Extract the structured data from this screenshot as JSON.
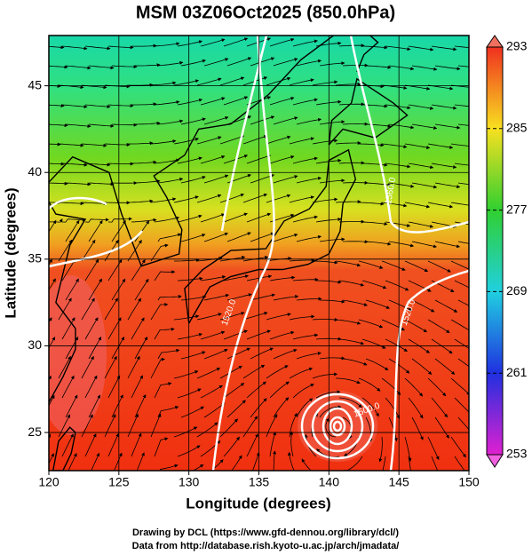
{
  "chart_data": {
    "type": "map",
    "title": "MSM 03Z06Oct2025 (850.0hPa)",
    "x_label": "Longitude (degrees)",
    "y_label": "Latitude  (degrees)",
    "xlim": [
      120,
      150
    ],
    "xticks": [
      120,
      125,
      130,
      135,
      140,
      145,
      150
    ],
    "ylim": [
      22.8,
      47.9
    ],
    "yticks": [
      25,
      30,
      35,
      40,
      45
    ],
    "grid": true,
    "colorbar": {
      "lim": [
        253,
        293
      ],
      "ticks": [
        253,
        261,
        269,
        277,
        285,
        293
      ]
    },
    "contour_labels": [
      "1560.0",
      "1520.0",
      "1520.0",
      "1500.0"
    ],
    "credits": [
      "Drawing by DCL (https://www.gfd-dennou.org/library/dcl/)",
      "Data from http://database.rish.kyoto-u.ac.jp/arch/jmadata/"
    ]
  }
}
